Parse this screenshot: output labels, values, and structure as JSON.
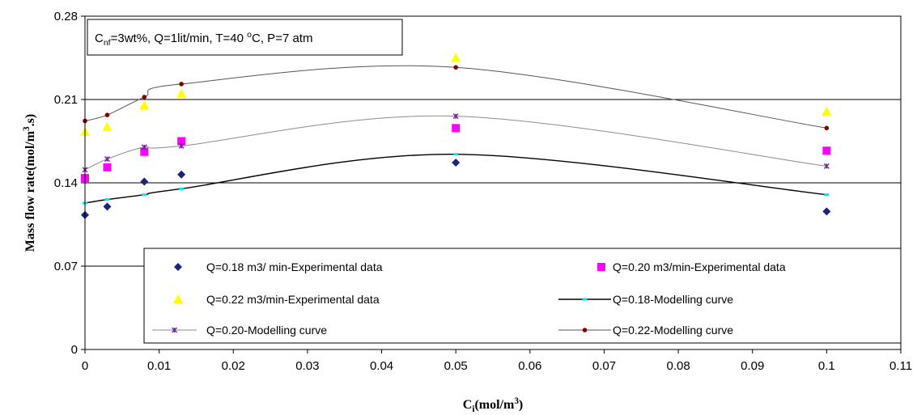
{
  "chart_data": {
    "type": "scatter",
    "annotation": {
      "parts": [
        {
          "t": "C",
          "style": "normal"
        },
        {
          "t": "nf",
          "style": "sub"
        },
        {
          "t": "=3wt%, Q=1lit/min, T=40 ",
          "style": "normal"
        },
        {
          "t": "o",
          "style": "sup"
        },
        {
          "t": "C, P=7 atm",
          "style": "normal"
        }
      ]
    },
    "xlabel": {
      "parts": [
        {
          "t": "C",
          "style": "normal"
        },
        {
          "t": "i",
          "style": "sub"
        },
        {
          "t": "(mol/m",
          "style": "normal"
        },
        {
          "t": "3",
          "style": "sup"
        },
        {
          "t": ")",
          "style": "normal"
        }
      ]
    },
    "ylabel": {
      "parts": [
        {
          "t": "Mass flow rate(mol/m",
          "style": "normal"
        },
        {
          "t": "3",
          "style": "sup"
        },
        {
          "t": ".s)",
          "style": "normal"
        }
      ]
    },
    "xlim": [
      0,
      0.11
    ],
    "ylim": [
      0,
      0.28
    ],
    "xticks": [
      "0",
      "0.01",
      "0.02",
      "0.03",
      "0.04",
      "0.05",
      "0.06",
      "0.07",
      "0.08",
      "0.09",
      "0.1",
      "0.11"
    ],
    "xtick_values": [
      0,
      0.01,
      0.02,
      0.03,
      0.04,
      0.05,
      0.06,
      0.07,
      0.08,
      0.09,
      0.1,
      0.11
    ],
    "yticks": [
      "0",
      "0.07",
      "0.14",
      "0.21",
      "0.28"
    ],
    "ytick_values": [
      0,
      0.07,
      0.14,
      0.21,
      0.28
    ],
    "grid": {
      "horizontal_major": true,
      "vertical": false
    },
    "legend": "inside-bottom",
    "series": [
      {
        "name": "Q=0.18 m3/ min-Experimental data",
        "kind": "markers",
        "marker": "diamond",
        "color": "#1a237e",
        "x": [
          0,
          0.003,
          0.008,
          0.013,
          0.05,
          0.1
        ],
        "y": [
          0.113,
          0.12,
          0.141,
          0.147,
          0.157,
          0.116
        ]
      },
      {
        "name": "Q=0.20 m3/min-Experimental data",
        "kind": "markers",
        "marker": "square",
        "color": "#ff00ff",
        "x": [
          0,
          0.003,
          0.008,
          0.013,
          0.05,
          0.1
        ],
        "y": [
          0.144,
          0.153,
          0.166,
          0.175,
          0.186,
          0.167
        ]
      },
      {
        "name": "Q=0.22 m3/min-Experimental data",
        "kind": "markers",
        "marker": "triangle",
        "color": "#ffff00",
        "x": [
          0,
          0.003,
          0.008,
          0.013,
          0.05,
          0.1
        ],
        "y": [
          0.183,
          0.187,
          0.205,
          0.215,
          0.245,
          0.2
        ]
      },
      {
        "name": "Q=0.18-Modelling curve",
        "kind": "curve",
        "marker": "dash",
        "color": "#000000",
        "marker_color": "#00e5ee",
        "x": [
          0,
          0.003,
          0.008,
          0.013,
          0.05,
          0.1
        ],
        "y": [
          0.123,
          0.126,
          0.13,
          0.135,
          0.164,
          0.13
        ]
      },
      {
        "name": "Q=0.20-Modelling curve",
        "kind": "curve",
        "marker": "star",
        "color": "#8c8c8c",
        "marker_color": "#7b1fa2",
        "x": [
          0,
          0.003,
          0.008,
          0.013,
          0.05,
          0.1
        ],
        "y": [
          0.151,
          0.16,
          0.17,
          0.171,
          0.196,
          0.154
        ]
      },
      {
        "name": "Q=0.22-Modelling curve",
        "kind": "curve",
        "marker": "circle",
        "color": "#555555",
        "marker_color": "#800000",
        "x": [
          0,
          0.003,
          0.008,
          0.013,
          0.05,
          0.1
        ],
        "y": [
          0.192,
          0.197,
          0.212,
          0.223,
          0.237,
          0.186
        ]
      }
    ]
  }
}
